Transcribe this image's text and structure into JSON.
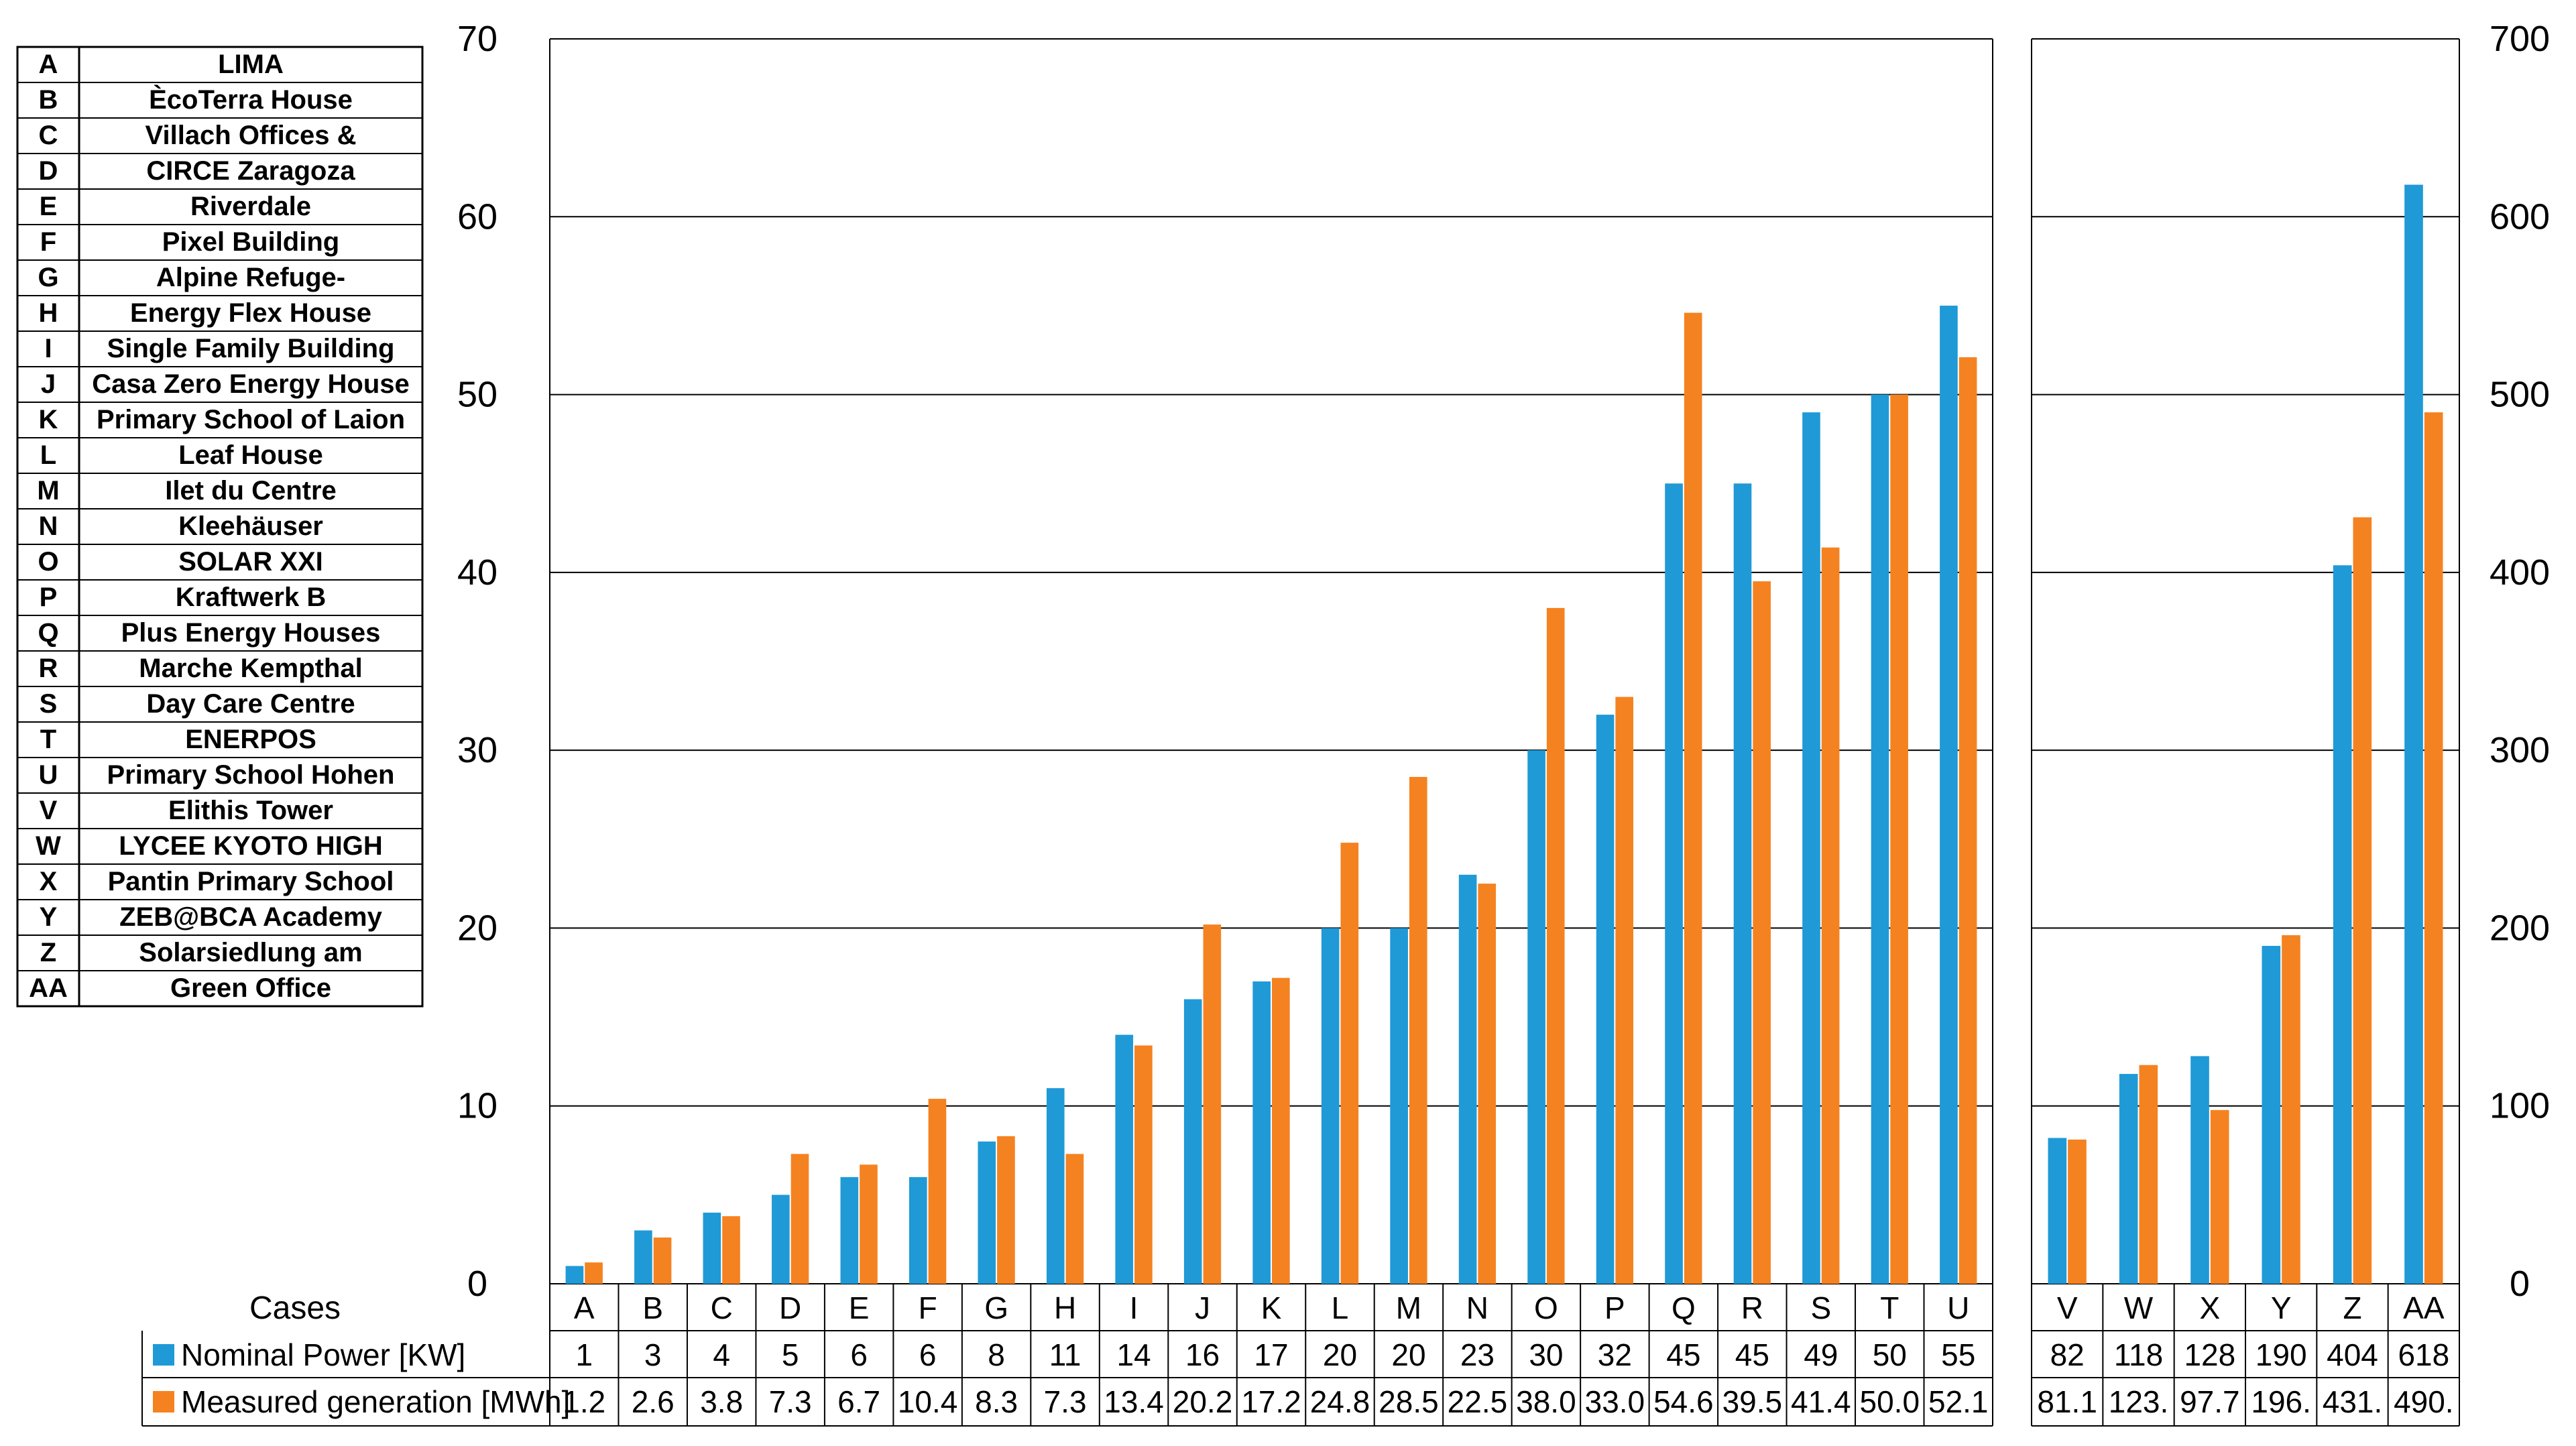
{
  "legend_table": [
    {
      "code": "A",
      "name": "LIMA"
    },
    {
      "code": "B",
      "name": "ÈcoTerra House"
    },
    {
      "code": "C",
      "name": "Villach Offices &"
    },
    {
      "code": "D",
      "name": "CIRCE Zaragoza"
    },
    {
      "code": "E",
      "name": "Riverdale"
    },
    {
      "code": "F",
      "name": "Pixel Building"
    },
    {
      "code": "G",
      "name": "Alpine Refuge-"
    },
    {
      "code": "H",
      "name": "Energy Flex House"
    },
    {
      "code": "I",
      "name": "Single Family Building"
    },
    {
      "code": "J",
      "name": "Casa Zero Energy House"
    },
    {
      "code": "K",
      "name": "Primary School of Laion"
    },
    {
      "code": "L",
      "name": "Leaf House"
    },
    {
      "code": "M",
      "name": "Ilet du Centre"
    },
    {
      "code": "N",
      "name": "Kleehäuser"
    },
    {
      "code": "O",
      "name": "SOLAR XXI"
    },
    {
      "code": "P",
      "name": "Kraftwerk B"
    },
    {
      "code": "Q",
      "name": "Plus Energy Houses"
    },
    {
      "code": "R",
      "name": "Marche Kempthal"
    },
    {
      "code": "S",
      "name": "Day Care Centre"
    },
    {
      "code": "T",
      "name": "ENERPOS"
    },
    {
      "code": "U",
      "name": "Primary School Hohen"
    },
    {
      "code": "V",
      "name": "Elithis Tower"
    },
    {
      "code": "W",
      "name": "LYCEE KYOTO HIGH"
    },
    {
      "code": "X",
      "name": "Pantin Primary School"
    },
    {
      "code": "Y",
      "name": "ZEB@BCA Academy"
    },
    {
      "code": "Z",
      "name": "Solarsiedlung am"
    },
    {
      "code": "AA",
      "name": "Green Office"
    }
  ],
  "chart_data": [
    {
      "type": "bar",
      "title": "",
      "xlabel": "Cases",
      "ylabel": "",
      "ylim": [
        0,
        70
      ],
      "yticks": [
        "0",
        "10",
        "20",
        "30",
        "40",
        "50",
        "60",
        "70"
      ],
      "grid": true,
      "categories": [
        "A",
        "B",
        "C",
        "D",
        "E",
        "F",
        "G",
        "H",
        "I",
        "J",
        "K",
        "L",
        "M",
        "N",
        "O",
        "P",
        "Q",
        "R",
        "S",
        "T",
        "U"
      ],
      "series": [
        {
          "name": "Nominal Power [KW]",
          "color": "#1f9ad6",
          "values": [
            1,
            3,
            4,
            5,
            6,
            6,
            8,
            11,
            14,
            16,
            17,
            20,
            20,
            23,
            30,
            32,
            45,
            45,
            49,
            50,
            55
          ],
          "labels": [
            "1",
            "3",
            "4",
            "5",
            "6",
            "6",
            "8",
            "11",
            "14",
            "16",
            "17",
            "20",
            "20",
            "23",
            "30",
            "32",
            "45",
            "45",
            "49",
            "50",
            "55"
          ]
        },
        {
          "name": "Measured generation [MWh]",
          "color": "#f58220",
          "values": [
            1.2,
            2.6,
            3.8,
            7.3,
            6.7,
            10.4,
            8.3,
            7.3,
            13.4,
            20.2,
            17.2,
            24.8,
            28.5,
            22.5,
            38.0,
            33.0,
            54.6,
            39.5,
            41.4,
            50.0,
            52.1
          ],
          "labels": [
            "1.2",
            "2.6",
            "3.8",
            "7.3",
            "6.7",
            "10.4",
            "8.3",
            "7.3",
            "13.4",
            "20.2",
            "17.2",
            "24.8",
            "28.5",
            "22.5",
            "38.0",
            "33.0",
            "54.6",
            "39.5",
            "41.4",
            "50.0",
            "52.1"
          ]
        }
      ]
    },
    {
      "type": "bar",
      "title": "",
      "xlabel": "",
      "ylabel": "",
      "ylim": [
        0,
        700
      ],
      "yticks": [
        "0",
        "100",
        "200",
        "300",
        "400",
        "500",
        "600",
        "700"
      ],
      "grid": true,
      "categories": [
        "V",
        "W",
        "X",
        "Y",
        "Z",
        "AA"
      ],
      "series": [
        {
          "name": "Nominal Power [KW]",
          "color": "#1f9ad6",
          "values": [
            82,
            118,
            128,
            190,
            404,
            618
          ],
          "labels": [
            "82",
            "118",
            "128",
            "190",
            "404",
            "618"
          ]
        },
        {
          "name": "Measured generation [MWh]",
          "color": "#f58220",
          "values": [
            81.1,
            123,
            97.7,
            196,
            431,
            490
          ],
          "labels": [
            "81.1",
            "123.",
            "97.7",
            "196.",
            "431.",
            "490."
          ]
        }
      ]
    }
  ]
}
